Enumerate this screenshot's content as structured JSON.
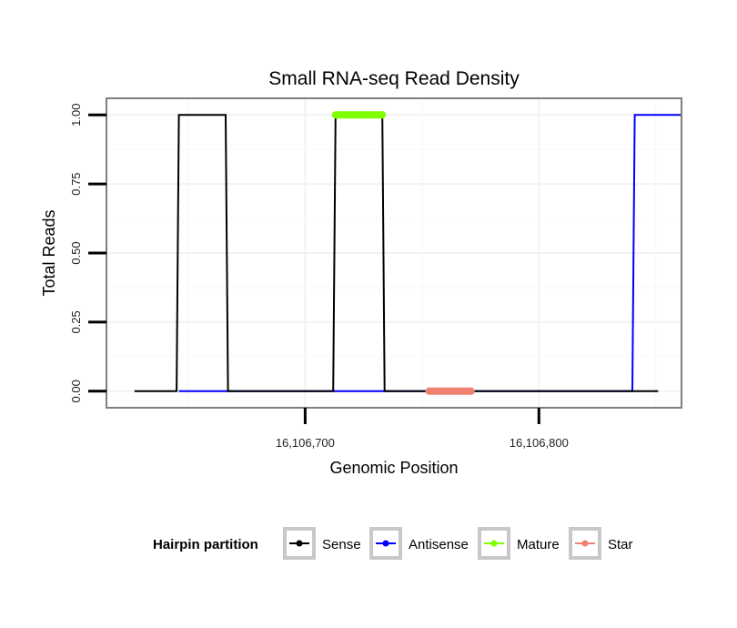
{
  "chart_data": {
    "type": "line",
    "title": "Small RNA-seq Read Density",
    "xlabel": "Genomic Position",
    "ylabel": "Total Reads",
    "xlim": [
      16106615,
      16106861
    ],
    "ylim": [
      -0.06,
      1.06
    ],
    "x_ticks": [
      {
        "value": 16106700,
        "label": "16,106,700"
      },
      {
        "value": 16106800,
        "label": "16,106,800"
      }
    ],
    "y_ticks": [
      {
        "value": 0.0,
        "label": "0.00"
      },
      {
        "value": 0.25,
        "label": "0.25"
      },
      {
        "value": 0.5,
        "label": "0.50"
      },
      {
        "value": 0.75,
        "label": "0.75"
      },
      {
        "value": 1.0,
        "label": "1.00"
      }
    ],
    "grid": true,
    "legend": {
      "title": "Hairpin partition",
      "position": "bottom",
      "entries": [
        {
          "name": "Sense",
          "color": "#000000"
        },
        {
          "name": "Antisense",
          "color": "#0000ff"
        },
        {
          "name": "Mature",
          "color": "#7fff00"
        },
        {
          "name": "Star",
          "color": "#f08070"
        }
      ]
    },
    "series": [
      {
        "name": "Sense",
        "color": "#000000",
        "x": [
          16106627,
          16106645,
          16106646,
          16106666,
          16106667,
          16106712,
          16106713,
          16106733,
          16106734,
          16106851
        ],
        "y": [
          0,
          0,
          1,
          1,
          0,
          0,
          1,
          1,
          0,
          0
        ]
      },
      {
        "name": "Antisense",
        "color": "#0000ff",
        "x": [
          16106646,
          16106667,
          16106712,
          16106733,
          16106840,
          16106841,
          16106861
        ],
        "y": [
          0,
          0,
          0,
          0,
          0,
          1,
          1
        ]
      },
      {
        "name": "Mature",
        "color": "#7fff00",
        "x": [
          16106713,
          16106733
        ],
        "y": [
          1,
          1
        ]
      },
      {
        "name": "Star",
        "color": "#f08070",
        "x": [
          16106753,
          16106771
        ],
        "y": [
          0,
          0
        ]
      }
    ]
  }
}
